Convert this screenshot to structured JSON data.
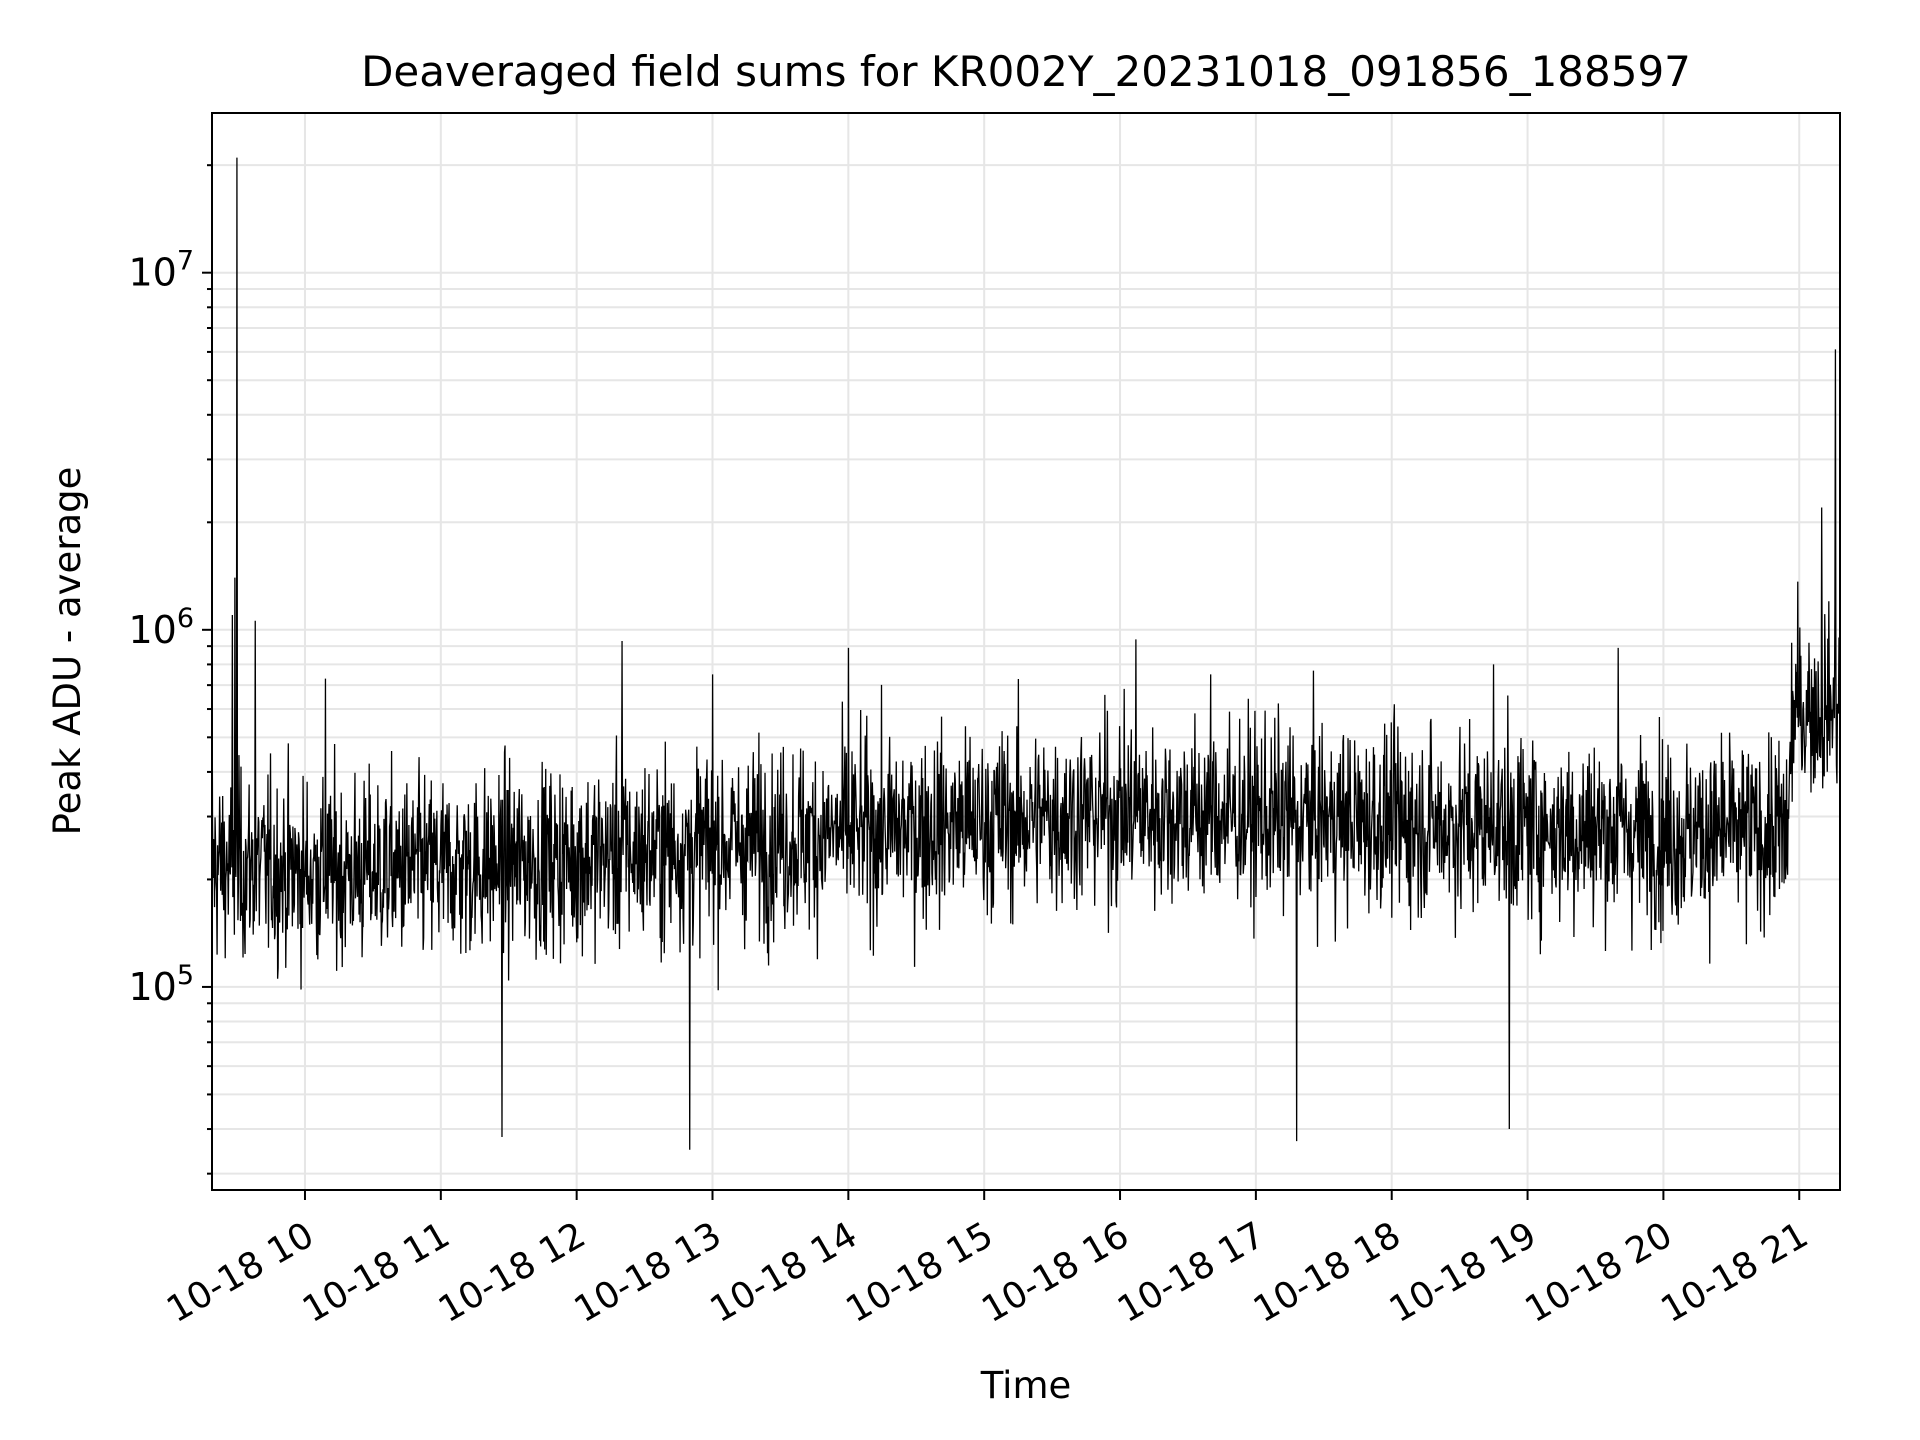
{
  "chart_data": {
    "type": "line",
    "title": "Deaveraged field sums for KR002Y_20231018_091856_188597",
    "xlabel": "Time",
    "ylabel": "Peak ADU - average",
    "x_range": [
      "2023-10-18 09:18:56",
      "2023-10-18 21:18:00"
    ],
    "y_scale": "log",
    "ylim": [
      27000,
      28000000
    ],
    "grid": true,
    "x_ticks": [
      "10-18 10",
      "10-18 11",
      "10-18 12",
      "10-18 13",
      "10-18 14",
      "10-18 15",
      "10-18 16",
      "10-18 17",
      "10-18 18",
      "10-18 19",
      "10-18 20",
      "10-18 21"
    ],
    "y_ticks": [
      {
        "value": 100000,
        "base": "10",
        "exp": "5"
      },
      {
        "value": 1000000,
        "base": "10",
        "exp": "6"
      },
      {
        "value": 10000000,
        "base": "10",
        "exp": "7"
      }
    ],
    "series": [
      {
        "color": "#000000",
        "baseline": [
          [
            "2023-10-18 09:19",
            220000
          ],
          [
            "2023-10-18 10:00",
            210000
          ],
          [
            "2023-10-18 11:00",
            215000
          ],
          [
            "2023-10-18 12:00",
            230000
          ],
          [
            "2023-10-18 13:00",
            250000
          ],
          [
            "2023-10-18 14:00",
            270000
          ],
          [
            "2023-10-18 15:00",
            290000
          ],
          [
            "2023-10-18 16:00",
            310000
          ],
          [
            "2023-10-18 17:00",
            300000
          ],
          [
            "2023-10-18 18:00",
            290000
          ],
          [
            "2023-10-18 19:00",
            280000
          ],
          [
            "2023-10-18 20:00",
            270000
          ],
          [
            "2023-10-18 20:55",
            270000
          ],
          [
            "2023-10-18 20:57",
            600000
          ],
          [
            "2023-10-18 21:18",
            620000
          ]
        ],
        "spikes": [
          [
            "2023-10-18 09:30",
            21000000
          ],
          [
            "2023-10-18 09:29",
            1400000
          ],
          [
            "2023-10-18 09:28",
            1100000
          ],
          [
            "2023-10-18 09:38",
            1060000
          ],
          [
            "2023-10-18 10:09",
            730000
          ],
          [
            "2023-10-18 11:27",
            38000
          ],
          [
            "2023-10-18 12:20",
            930000
          ],
          [
            "2023-10-18 12:50",
            35000
          ],
          [
            "2023-10-18 13:00",
            750000
          ],
          [
            "2023-10-18 14:00",
            890000
          ],
          [
            "2023-10-18 16:07",
            940000
          ],
          [
            "2023-10-18 16:40",
            750000
          ],
          [
            "2023-10-18 17:18",
            37000
          ],
          [
            "2023-10-18 18:45",
            800000
          ],
          [
            "2023-10-18 18:52",
            40000
          ],
          [
            "2023-10-18 19:40",
            890000
          ],
          [
            "2023-10-18 21:10",
            2200000
          ],
          [
            "2023-10-18 21:16",
            6100000
          ]
        ]
      }
    ]
  }
}
